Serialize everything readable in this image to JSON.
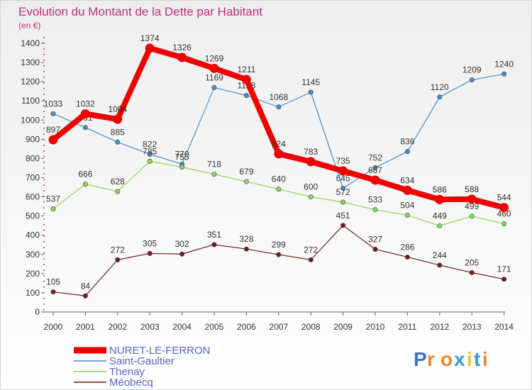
{
  "title": "Evolution du Montant de la Dette par Habitant",
  "subtitle": "(en €)",
  "logo_text": "Proxiti",
  "chart_data": {
    "type": "line",
    "title": "Evolution du Montant de la Dette par Habitant",
    "subtitle": "(en €)",
    "x": [
      2000,
      2001,
      2002,
      2003,
      2004,
      2005,
      2006,
      2007,
      2008,
      2009,
      2010,
      2011,
      2012,
      2013,
      2014
    ],
    "ylim": [
      0,
      1400
    ],
    "yticks": [
      0,
      100,
      200,
      300,
      400,
      500,
      600,
      700,
      800,
      900,
      1000,
      1100,
      1200,
      1300,
      1400
    ],
    "grid": false,
    "legend_position": "bottom-left",
    "series": [
      {
        "name": "Saint-Gaultier",
        "color": "#4a8ec8",
        "values": [
          1033,
          961,
          885,
          822,
          770,
          1169,
          1128,
          1068,
          1145,
          645,
          752,
          836,
          1120,
          1209,
          1240
        ],
        "labels": [
          "1033",
          "961",
          "885",
          "822",
          "770",
          "1169",
          "1128",
          "1068",
          "1145",
          "645",
          "752",
          "836",
          "1120",
          "1209",
          "1240"
        ]
      },
      {
        "name": "Thenay",
        "color": "#8ed65a",
        "values": [
          537,
          666,
          628,
          785,
          755,
          718,
          679,
          640,
          600,
          572,
          533,
          504,
          449,
          499,
          460
        ],
        "labels": [
          "537",
          "666",
          "628",
          "785",
          "755",
          "718",
          "679",
          "640",
          "600",
          "572",
          "533",
          "504",
          "449",
          "499",
          "460"
        ]
      },
      {
        "name": "Méobecq",
        "color": "#6e1e20",
        "values": [
          105,
          84,
          272,
          305,
          302,
          351,
          328,
          299,
          272,
          451,
          327,
          286,
          244,
          205,
          171
        ],
        "labels": [
          "105",
          "84",
          "272",
          "305",
          "302",
          "351",
          "328",
          "299",
          "272",
          "451",
          "327",
          "286",
          "244",
          "205",
          "171"
        ]
      },
      {
        "name": "NURET-LE-FERRON",
        "color": "#ee0000",
        "values": [
          897,
          1032,
          1004,
          1374,
          1326,
          1269,
          1211,
          824,
          783,
          735,
          687,
          634,
          586,
          588,
          544
        ],
        "labels": [
          "897",
          "1032",
          "1004",
          "1374",
          "1326",
          "1269",
          "1211",
          "824",
          "783",
          "735",
          "687",
          "634",
          "586",
          "588",
          "544"
        ]
      }
    ]
  }
}
